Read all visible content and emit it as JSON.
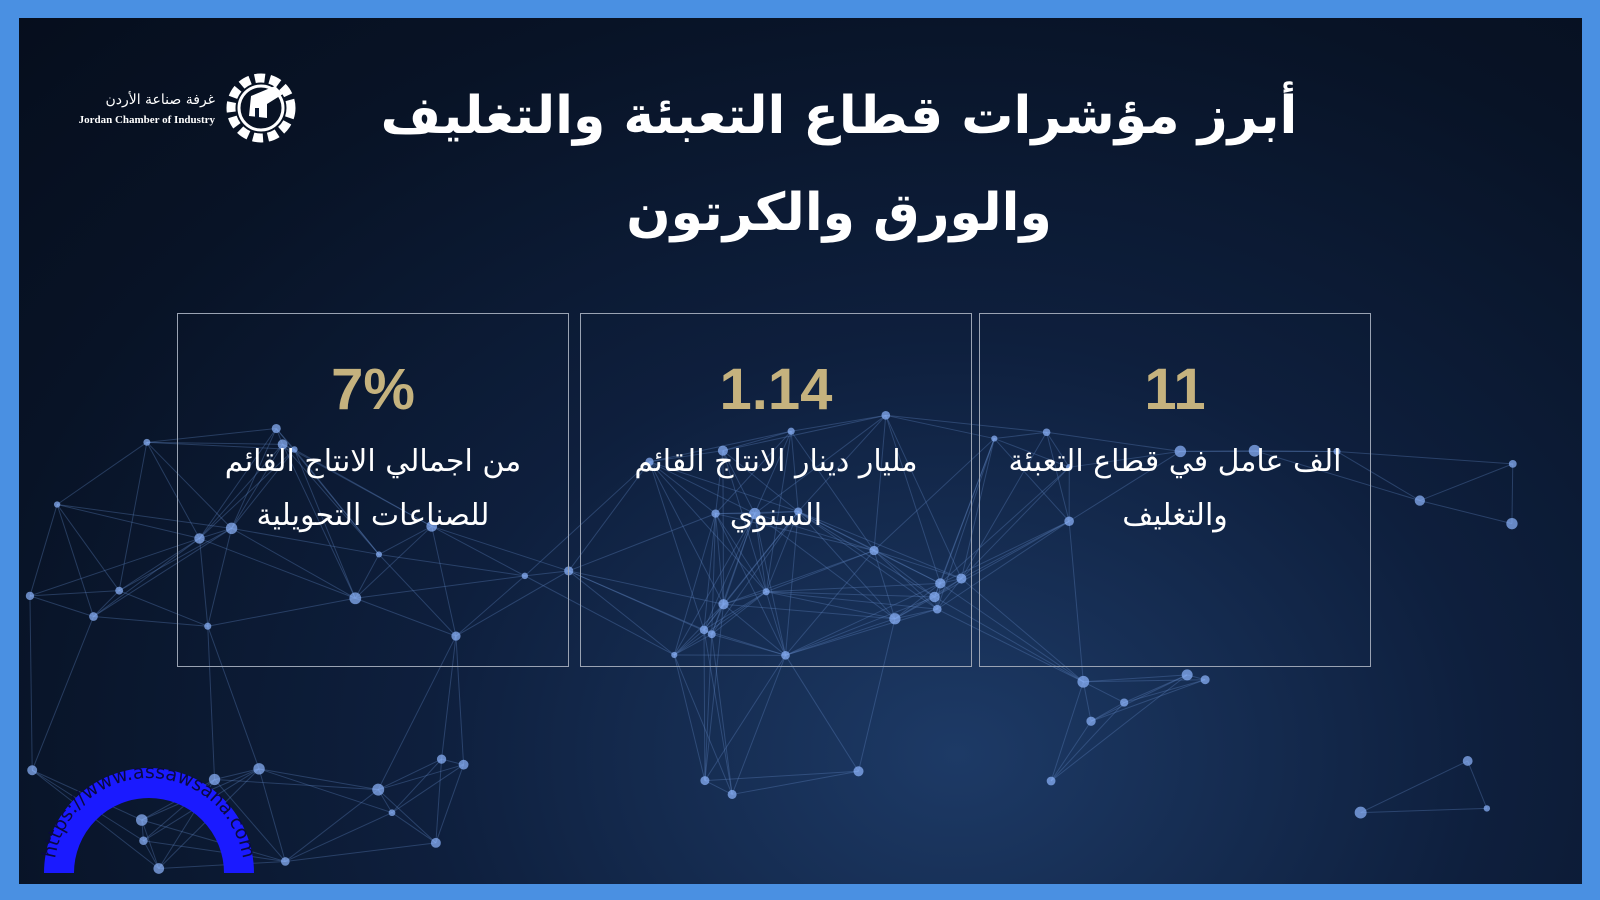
{
  "header": {
    "title_line1": "أبرز مؤشرات قطاع التعبئة والتغليف",
    "title_line2": "والورق والكرتون"
  },
  "logo": {
    "name_ar": "غرفة صناعة الأردن",
    "name_en": "Jordan Chamber of Industry",
    "icon": "gear-map-icon"
  },
  "cards": [
    {
      "value": "7%",
      "description": "من اجمالي الانتاج القائم للصناعات التحويلية"
    },
    {
      "value": "1.14",
      "description": "مليار دينار الانتاج القائم السنوي"
    },
    {
      "value": "11",
      "description": "الف عامل في قطاع التعبئة والتغليف"
    }
  ],
  "watermark": {
    "text": "https://www.assawsana.com"
  },
  "colors": {
    "frame": "#4a90e2",
    "background": "#0a1830",
    "value": "#c5b27e",
    "watermark": "#1a1aff"
  }
}
